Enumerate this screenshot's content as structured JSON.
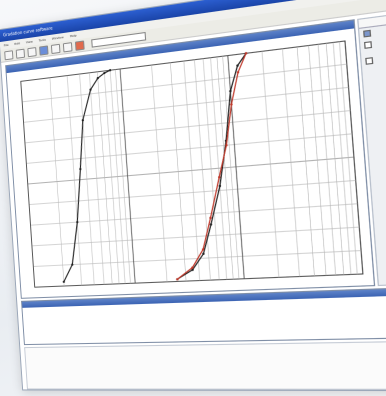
{
  "window": {
    "title": "Gradation curve software",
    "colors": {
      "titlebar": "#1a44a8",
      "curve_black": "#222222",
      "curve_red": "#c0392b"
    }
  },
  "menubar": {
    "items": [
      "File",
      "Edit",
      "View",
      "Tools",
      "Window",
      "Help"
    ]
  },
  "toolbar": {
    "combo_value": ""
  },
  "graph": {
    "header": ""
  },
  "side_panel": {
    "tabs": [
      "",
      ""
    ],
    "options": [
      {
        "label": "",
        "checked": true
      },
      {
        "label": "",
        "checked": false
      }
    ],
    "group_label": "",
    "group_options": [
      {
        "label": "",
        "checked": false
      }
    ]
  },
  "log": {
    "header": "",
    "text": ""
  },
  "bottom": {
    "label": ""
  },
  "chart_data": {
    "type": "line",
    "title": "",
    "xlabel": "",
    "ylabel": "",
    "ylim": [
      0,
      100
    ],
    "grid": true,
    "series": [
      {
        "color": "#222222",
        "x": [
          0.02,
          0.025,
          0.03,
          0.035,
          0.04,
          0.05,
          0.06,
          0.07,
          0.08
        ],
        "values": [
          2,
          10,
          30,
          55,
          78,
          92,
          97,
          99,
          100
        ]
      },
      {
        "color": "#222222",
        "x": [
          0.25,
          0.35,
          0.45,
          0.55,
          0.7,
          0.85,
          1.0,
          1.2,
          1.45
        ],
        "values": [
          1,
          5,
          12,
          25,
          42,
          62,
          84,
          95,
          100
        ]
      },
      {
        "color": "#c0392b",
        "x": [
          0.25,
          0.35,
          0.45,
          0.55,
          0.7,
          0.85,
          1.0,
          1.2,
          1.45
        ],
        "values": [
          1,
          6,
          14,
          28,
          46,
          60,
          78,
          92,
          100
        ]
      }
    ]
  }
}
